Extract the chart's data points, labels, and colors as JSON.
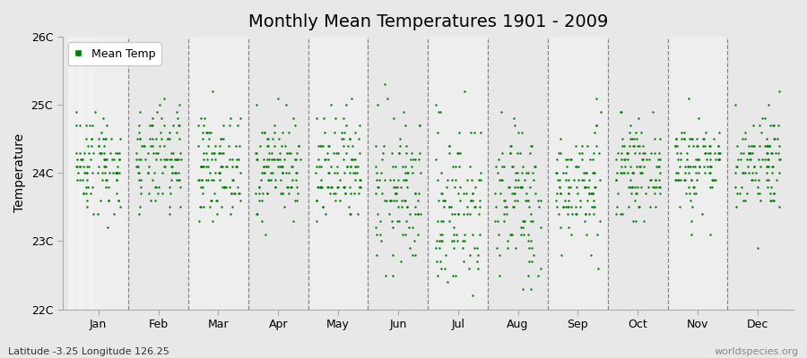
{
  "title": "Monthly Mean Temperatures 1901 - 2009",
  "ylabel": "Temperature",
  "xlabel": "",
  "lat_lon_label": "Latitude -3.25 Longitude 126.25",
  "watermark": "worldspecies.org",
  "ylim": [
    22.0,
    26.0
  ],
  "ytick_labels": [
    "22C",
    "23C",
    "24C",
    "25C",
    "26C"
  ],
  "ytick_values": [
    22.0,
    23.0,
    24.0,
    25.0,
    26.0
  ],
  "months": [
    "Jan",
    "Feb",
    "Mar",
    "Apr",
    "May",
    "Jun",
    "Jul",
    "Aug",
    "Sep",
    "Oct",
    "Nov",
    "Dec"
  ],
  "dot_color": "#008000",
  "dot_size": 3,
  "background_color": "#e8e8e8",
  "plot_bg_color": "#e8e8e8",
  "legend_label": "Mean Temp",
  "n_years": 109,
  "seed": 42,
  "mean_temps": [
    24.15,
    24.15,
    24.1,
    24.1,
    24.0,
    23.7,
    23.5,
    23.6,
    23.8,
    24.05,
    24.15,
    24.2
  ],
  "std_temps": [
    0.38,
    0.38,
    0.36,
    0.36,
    0.42,
    0.55,
    0.65,
    0.58,
    0.42,
    0.32,
    0.35,
    0.38
  ],
  "quantize": 0.1,
  "alt_band_color": "#f0f0f0",
  "main_band_color": "#e8e8e8",
  "title_fontsize": 14,
  "tick_fontsize": 9,
  "ylabel_fontsize": 10
}
